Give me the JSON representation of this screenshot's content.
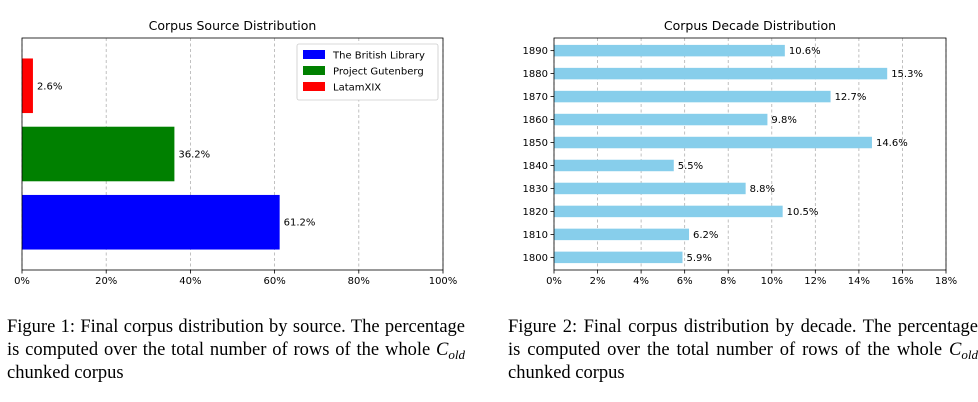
{
  "chart_data": [
    {
      "type": "bar",
      "orientation": "horizontal",
      "title": "Corpus Source Distribution",
      "categories": [
        "The British Library",
        "Project Gutenberg",
        "LatamXIX"
      ],
      "values": [
        61.2,
        36.2,
        2.6
      ],
      "value_labels": [
        "61.2%",
        "36.2%",
        "2.6%"
      ],
      "colors": [
        "#0000ff",
        "#008000",
        "#ff0000"
      ],
      "xlim": [
        0,
        100
      ],
      "xticks": [
        "0%",
        "20%",
        "40%",
        "60%",
        "80%",
        "100%"
      ],
      "grid": "vertical dashed",
      "legend": {
        "placement": "top-right",
        "entries": [
          "The British Library",
          "Project Gutenberg",
          "LatamXIX"
        ]
      }
    },
    {
      "type": "bar",
      "orientation": "horizontal",
      "title": "Corpus Decade Distribution",
      "categories": [
        "1800",
        "1810",
        "1820",
        "1830",
        "1840",
        "1850",
        "1860",
        "1870",
        "1880",
        "1890"
      ],
      "values": [
        5.9,
        6.2,
        10.5,
        8.8,
        5.5,
        14.6,
        9.8,
        12.7,
        15.3,
        10.6
      ],
      "value_labels": [
        "5.9%",
        "6.2%",
        "10.5%",
        "8.8%",
        "5.5%",
        "14.6%",
        "9.8%",
        "12.7%",
        "15.3%",
        "10.6%"
      ],
      "color": "#87ceeb",
      "xlim": [
        0,
        18
      ],
      "xticks": [
        "0%",
        "2%",
        "4%",
        "6%",
        "8%",
        "10%",
        "12%",
        "14%",
        "16%",
        "18%"
      ],
      "grid": "vertical dashed"
    }
  ],
  "captions": [
    {
      "prefix": "Figure 1: Final corpus distribution by source. The percentage is computed over the total number of rows of the whole ",
      "var": "C",
      "sub": "old",
      "suffix": " chunked corpus"
    },
    {
      "prefix": "Figure 2: Final corpus distribution by decade. The percentage is computed over the total number of rows of the whole ",
      "var": "C",
      "sub": "old",
      "suffix": " chunked corpus"
    }
  ]
}
